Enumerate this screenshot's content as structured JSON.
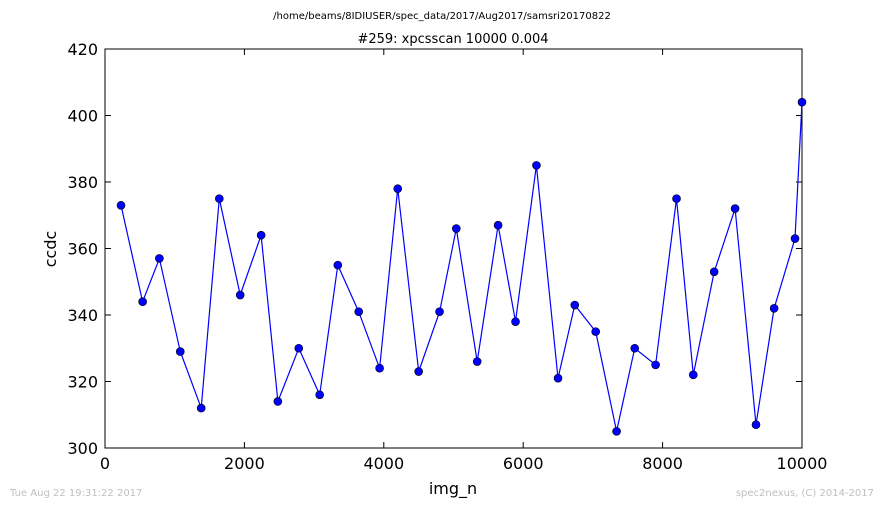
{
  "header": {
    "path": "/home/beams/8IDIUSER/spec_data/2017/Aug2017/samsri20170822"
  },
  "footer": {
    "timestamp": "Tue Aug 22 19:31:22 2017",
    "credit": "spec2nexus, (C) 2014-2017"
  },
  "colors": {
    "series": "#0000ff",
    "axes": "#000000",
    "footer": "#bfbfbf"
  },
  "chart_data": {
    "type": "line",
    "title": "#259: xpcsscan 10000 0.004",
    "xlabel": "img_n",
    "ylabel": "ccdc",
    "xlim": [
      0,
      10000
    ],
    "ylim": [
      300,
      420
    ],
    "xticks": [
      0,
      2000,
      4000,
      6000,
      8000,
      10000
    ],
    "yticks": [
      300,
      320,
      340,
      360,
      380,
      400,
      420
    ],
    "grid": false,
    "markers": "circle",
    "series": [
      {
        "x": [
          230,
          540,
          780,
          1080,
          1380,
          1640,
          1940,
          2240,
          2480,
          2780,
          3080,
          3340,
          3640,
          3940,
          4200,
          4500,
          4800,
          5040,
          5340,
          5640,
          5890,
          6190,
          6500,
          6740,
          7040,
          7340,
          7600,
          7900,
          8200,
          8440,
          8740,
          9040,
          9340,
          9600,
          9900,
          10000
        ],
        "y": [
          373,
          344,
          357,
          329,
          312,
          375,
          346,
          364,
          314,
          330,
          316,
          355,
          341,
          324,
          378,
          323,
          341,
          366,
          326,
          367,
          338,
          385,
          321,
          343,
          335,
          305,
          330,
          325,
          375,
          322,
          353,
          372,
          307,
          342,
          363,
          404
        ]
      }
    ]
  }
}
